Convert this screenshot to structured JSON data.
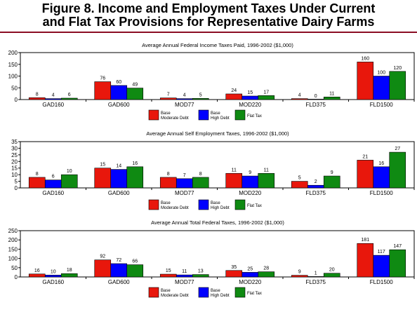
{
  "figure": {
    "title_line1": "Figure 8. Income and Employment Taxes Under Current",
    "title_line2": "and Flat Tax Provisions for Representative Dairy Farms",
    "rule_color": "#8b0d24"
  },
  "chart_data": [
    {
      "type": "bar",
      "title": "Average Annual Federal Income Taxes Paid, 1996-2002 ($1,000)",
      "categories": [
        "GAD160",
        "GAD600",
        "MOD77",
        "MOD220",
        "FLD375",
        "FLD1500"
      ],
      "ylim": [
        0,
        200
      ],
      "yticks": [
        0,
        50,
        100,
        150,
        200
      ],
      "series": [
        {
          "name": "Base Moderate Debt",
          "color": "#e8170c",
          "values": [
            8,
            76,
            7,
            24,
            4,
            160
          ]
        },
        {
          "name": "Base High Debt",
          "color": "#0000ff",
          "values": [
            4,
            60,
            4,
            15,
            0,
            100
          ]
        },
        {
          "name": "Flat Tax",
          "color": "#0f8a12",
          "values": [
            6,
            49,
            5,
            17,
            11,
            120
          ]
        }
      ],
      "grid": false,
      "legend": "bottom-center"
    },
    {
      "type": "bar",
      "title": "Average Annual Self Employment Taxes, 1996-2002 ($1,000)",
      "categories": [
        "GAD160",
        "GAD600",
        "MOD77",
        "MOD220",
        "FLD375",
        "FLD1500"
      ],
      "ylim": [
        0,
        35
      ],
      "yticks": [
        0,
        5,
        10,
        15,
        20,
        25,
        30,
        35
      ],
      "series": [
        {
          "name": "Base Moderate Debt",
          "color": "#e8170c",
          "values": [
            8,
            15,
            8,
            11,
            5,
            21
          ]
        },
        {
          "name": "Base High Debt",
          "color": "#0000ff",
          "values": [
            6,
            14,
            7,
            9,
            2,
            16
          ]
        },
        {
          "name": "Flat Tax",
          "color": "#0f8a12",
          "values": [
            10,
            16,
            8,
            11,
            9,
            27
          ]
        }
      ],
      "grid": false,
      "legend": "bottom-center"
    },
    {
      "type": "bar",
      "title": "Average Annual Total Federal Taxes, 1996-2002 ($1,000)",
      "categories": [
        "GAD160",
        "GAD600",
        "MOD77",
        "MOD220",
        "FLD375",
        "FLD1500"
      ],
      "ylim": [
        0,
        250
      ],
      "yticks": [
        0,
        50,
        100,
        150,
        200,
        250
      ],
      "series": [
        {
          "name": "Base Moderate Debt",
          "color": "#e8170c",
          "values": [
            16,
            92,
            15,
            35,
            9,
            181
          ]
        },
        {
          "name": "Base High Debt",
          "color": "#0000ff",
          "values": [
            10,
            72,
            11,
            25,
            1,
            117
          ]
        },
        {
          "name": "Flat Tax",
          "color": "#0f8a12",
          "values": [
            18,
            66,
            13,
            28,
            20,
            147
          ]
        }
      ],
      "grid": false,
      "legend": "bottom-center"
    }
  ],
  "legend": {
    "items": [
      {
        "line1": "Base",
        "line2": "Moderate Debt",
        "color": "#e8170c"
      },
      {
        "line1": "Base",
        "line2": "High Debt",
        "color": "#0000ff"
      },
      {
        "line1": "Flat Tax",
        "line2": "",
        "color": "#0f8a12"
      }
    ]
  }
}
